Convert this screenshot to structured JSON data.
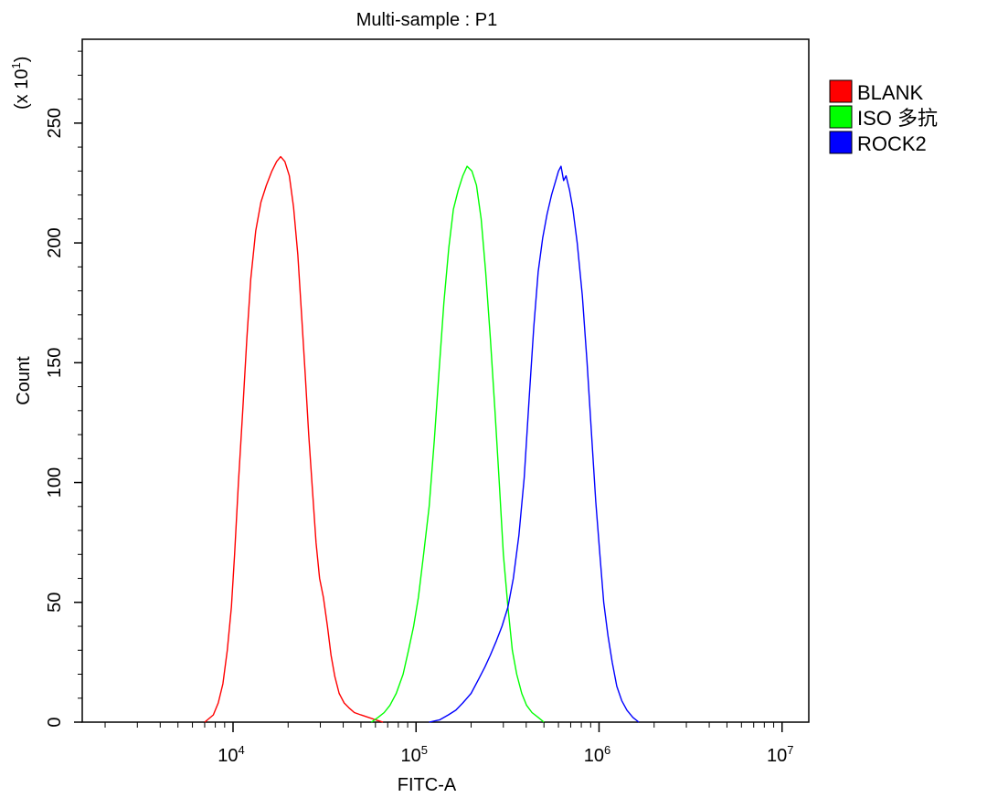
{
  "chart_data": {
    "type": "line",
    "title": "Multi-sample : P1",
    "xlabel": "FITC-A",
    "ylabel": "Count",
    "y_multiplier": "(x 10",
    "y_multiplier_exp": "1",
    "y_multiplier_close": ")",
    "x_scale": "log",
    "xlim": [
      1500,
      14000000
    ],
    "ylim": [
      0,
      285
    ],
    "x_ticks": [
      {
        "base": "10",
        "exp": "4",
        "value": 10000
      },
      {
        "base": "10",
        "exp": "5",
        "value": 100000
      },
      {
        "base": "10",
        "exp": "6",
        "value": 1000000
      },
      {
        "base": "10",
        "exp": "7",
        "value": 10000000
      }
    ],
    "y_ticks": [
      "0",
      "50",
      "100",
      "150",
      "200",
      "250"
    ],
    "legend_position": "right",
    "series": [
      {
        "name": "BLANK",
        "color": "#ff0000",
        "points": [
          [
            7000,
            0
          ],
          [
            7800,
            3
          ],
          [
            8300,
            8
          ],
          [
            8800,
            16
          ],
          [
            9300,
            30
          ],
          [
            9800,
            48
          ],
          [
            10200,
            70
          ],
          [
            10700,
            100
          ],
          [
            11300,
            130
          ],
          [
            11900,
            160
          ],
          [
            12500,
            185
          ],
          [
            13300,
            205
          ],
          [
            14200,
            217
          ],
          [
            15200,
            224
          ],
          [
            16300,
            230
          ],
          [
            17300,
            234
          ],
          [
            18200,
            236
          ],
          [
            19200,
            234
          ],
          [
            20300,
            228
          ],
          [
            21400,
            215
          ],
          [
            22600,
            195
          ],
          [
            23700,
            170
          ],
          [
            24800,
            145
          ],
          [
            25900,
            120
          ],
          [
            27100,
            98
          ],
          [
            28400,
            75
          ],
          [
            29700,
            60
          ],
          [
            31200,
            52
          ],
          [
            32800,
            40
          ],
          [
            34300,
            28
          ],
          [
            36000,
            19
          ],
          [
            38000,
            12
          ],
          [
            40500,
            8
          ],
          [
            43000,
            6
          ],
          [
            46000,
            4
          ],
          [
            50000,
            3
          ],
          [
            55000,
            2
          ],
          [
            60000,
            1
          ],
          [
            66000,
            0
          ]
        ]
      },
      {
        "name": "ISO 多抗",
        "color": "#00ff00",
        "points": [
          [
            57000,
            0
          ],
          [
            62000,
            2
          ],
          [
            67000,
            4
          ],
          [
            72000,
            7
          ],
          [
            78000,
            12
          ],
          [
            85000,
            20
          ],
          [
            91000,
            30
          ],
          [
            97000,
            40
          ],
          [
            103000,
            52
          ],
          [
            110000,
            70
          ],
          [
            118000,
            90
          ],
          [
            126000,
            118
          ],
          [
            134000,
            148
          ],
          [
            142000,
            175
          ],
          [
            151000,
            198
          ],
          [
            160000,
            214
          ],
          [
            170000,
            222
          ],
          [
            180000,
            228
          ],
          [
            190000,
            232
          ],
          [
            202000,
            230
          ],
          [
            214000,
            224
          ],
          [
            227000,
            210
          ],
          [
            240000,
            188
          ],
          [
            255000,
            160
          ],
          [
            270000,
            130
          ],
          [
            285000,
            100
          ],
          [
            300000,
            70
          ],
          [
            318000,
            48
          ],
          [
            336000,
            30
          ],
          [
            355000,
            20
          ],
          [
            378000,
            12
          ],
          [
            402000,
            7
          ],
          [
            430000,
            4
          ],
          [
            465000,
            2
          ],
          [
            500000,
            0
          ]
        ]
      },
      {
        "name": "ROCK2",
        "color": "#0000ff",
        "points": [
          [
            118000,
            0
          ],
          [
            135000,
            1
          ],
          [
            150000,
            3
          ],
          [
            165000,
            5
          ],
          [
            180000,
            8
          ],
          [
            200000,
            12
          ],
          [
            220000,
            18
          ],
          [
            238000,
            23
          ],
          [
            255000,
            28
          ],
          [
            275000,
            34
          ],
          [
            295000,
            40
          ],
          [
            318000,
            48
          ],
          [
            340000,
            60
          ],
          [
            365000,
            78
          ],
          [
            390000,
            102
          ],
          [
            415000,
            135
          ],
          [
            440000,
            165
          ],
          [
            465000,
            188
          ],
          [
            492000,
            202
          ],
          [
            520000,
            212
          ],
          [
            550000,
            220
          ],
          [
            580000,
            226
          ],
          [
            600000,
            230
          ],
          [
            620000,
            232
          ],
          [
            640000,
            226
          ],
          [
            660000,
            228
          ],
          [
            690000,
            222
          ],
          [
            720000,
            214
          ],
          [
            760000,
            200
          ],
          [
            810000,
            178
          ],
          [
            860000,
            150
          ],
          [
            910000,
            120
          ],
          [
            960000,
            92
          ],
          [
            1010000,
            70
          ],
          [
            1060000,
            50
          ],
          [
            1120000,
            36
          ],
          [
            1180000,
            25
          ],
          [
            1250000,
            15
          ],
          [
            1330000,
            9
          ],
          [
            1420000,
            5
          ],
          [
            1530000,
            2
          ],
          [
            1650000,
            0
          ]
        ]
      }
    ]
  }
}
